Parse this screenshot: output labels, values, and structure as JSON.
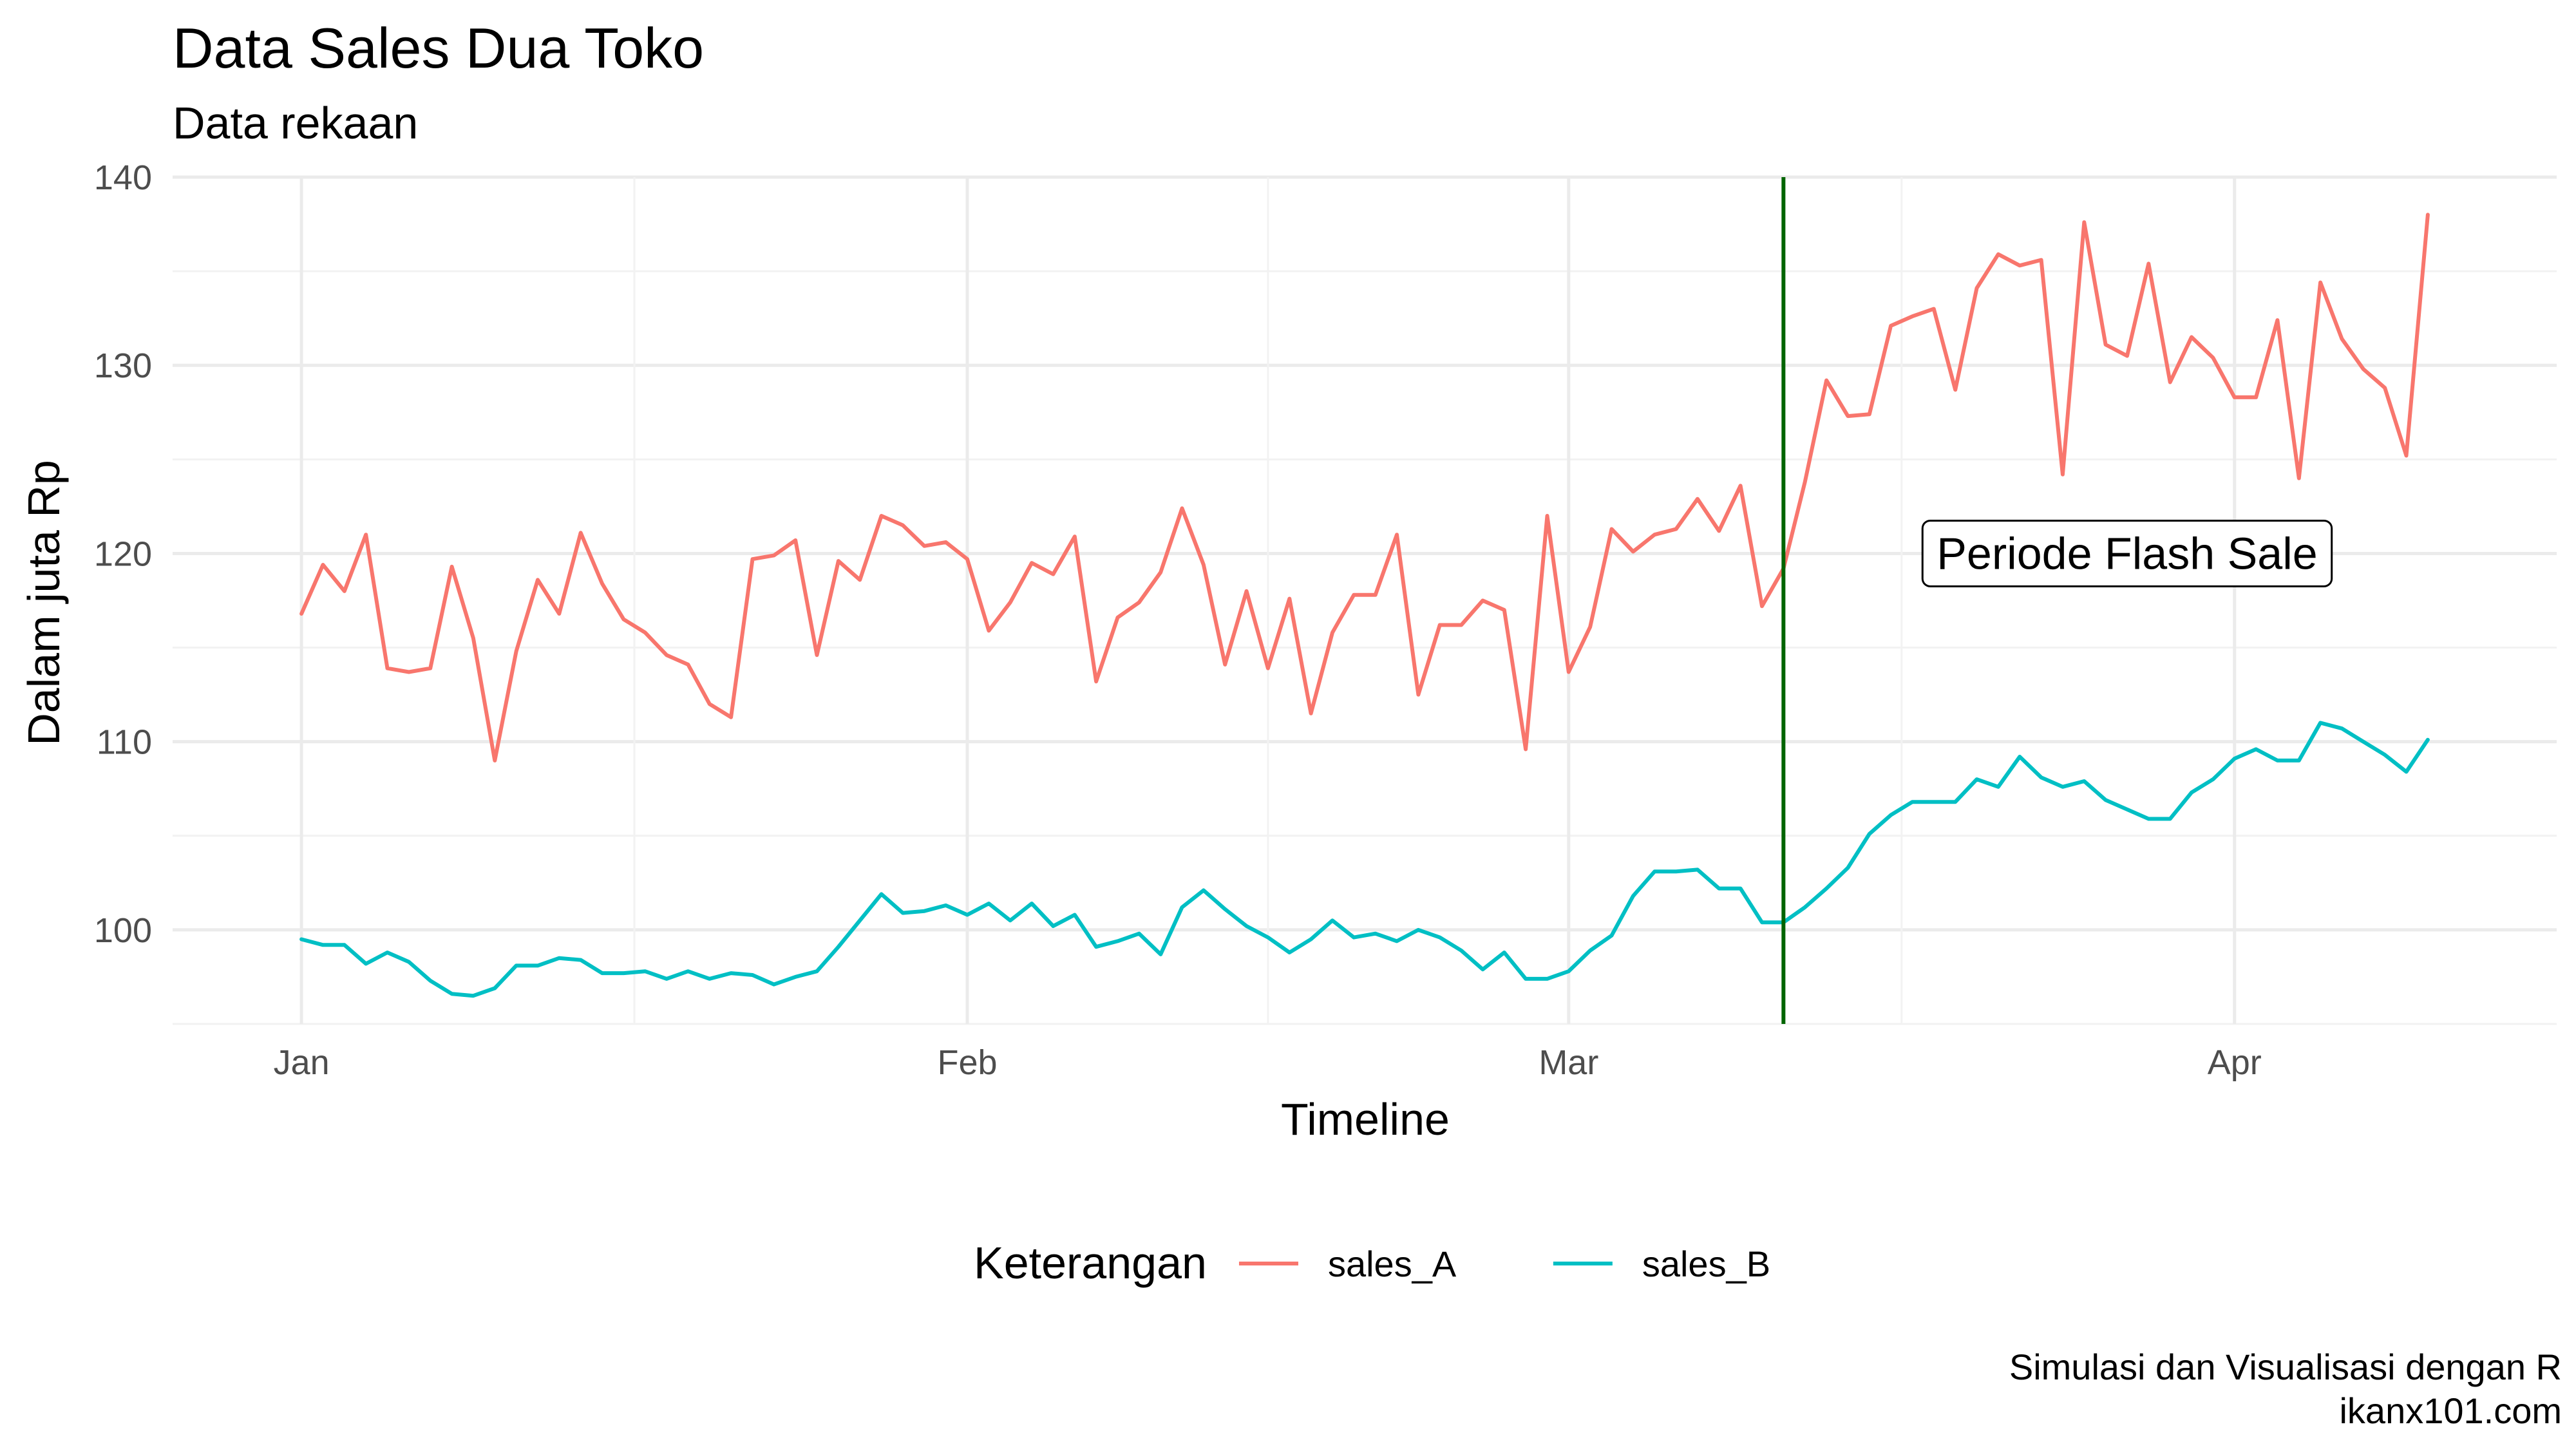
{
  "chart_data": {
    "type": "line",
    "title": "Data Sales Dua Toko",
    "subtitle": "Data rekaan",
    "xlabel": "Timeline",
    "ylabel": "Dalam juta Rp",
    "caption_lines": [
      "Simulasi dan Visualisasi dengan R",
      "ikanx101.com"
    ],
    "x_start": "2021-01-01",
    "x_end": "2021-04-10",
    "xlim": [
      "2020-12-26",
      "2021-04-16"
    ],
    "ylim": [
      95,
      140
    ],
    "y_ticks": [
      100,
      110,
      120,
      130,
      140
    ],
    "x_ticks": [
      {
        "date": "2021-01-01",
        "label": "Jan"
      },
      {
        "date": "2021-02-01",
        "label": "Feb"
      },
      {
        "date": "2021-03-01",
        "label": "Mar"
      },
      {
        "date": "2021-04-01",
        "label": "Apr"
      }
    ],
    "grid": true,
    "legend": {
      "title": "Keterangan",
      "position": "bottom"
    },
    "series": [
      {
        "name": "sales_A",
        "color": "#F8766D",
        "values": [
          116.8,
          119.4,
          118.0,
          121.0,
          113.9,
          113.7,
          113.9,
          119.3,
          115.5,
          109.0,
          114.8,
          118.6,
          116.8,
          121.1,
          118.4,
          116.5,
          115.8,
          114.6,
          114.1,
          112.0,
          111.3,
          119.7,
          119.9,
          120.7,
          114.6,
          119.6,
          118.6,
          122.0,
          121.5,
          120.4,
          120.6,
          119.7,
          115.9,
          117.4,
          119.5,
          118.9,
          120.9,
          113.2,
          116.6,
          117.4,
          119.0,
          122.4,
          119.4,
          114.1,
          118.0,
          113.9,
          117.6,
          111.5,
          115.8,
          117.8,
          117.8,
          121.0,
          112.5,
          116.2,
          116.2,
          117.5,
          117.0,
          109.6,
          122.0,
          113.7,
          116.1,
          121.3,
          120.1,
          121.0,
          121.3,
          122.9,
          121.2,
          123.6,
          117.2,
          119.2,
          123.8,
          129.2,
          127.3,
          127.4,
          132.1,
          132.6,
          133.0,
          128.7,
          134.1,
          135.9,
          135.3,
          135.6,
          124.2,
          137.6,
          131.1,
          130.5,
          135.4,
          129.1,
          131.5,
          130.4,
          128.3,
          128.3,
          132.4,
          124.0,
          134.4,
          131.4,
          129.8,
          128.8,
          125.2,
          138.0
        ]
      },
      {
        "name": "sales_B",
        "color": "#00BFC4",
        "values": [
          99.5,
          99.2,
          99.2,
          98.2,
          98.8,
          98.3,
          97.3,
          96.6,
          96.5,
          96.9,
          98.1,
          98.1,
          98.5,
          98.4,
          97.7,
          97.7,
          97.8,
          97.4,
          97.8,
          97.4,
          97.7,
          97.6,
          97.1,
          97.5,
          97.8,
          99.1,
          100.5,
          101.9,
          100.9,
          101.0,
          101.3,
          100.8,
          101.4,
          100.5,
          101.4,
          100.2,
          100.8,
          99.1,
          99.4,
          99.8,
          98.7,
          101.2,
          102.1,
          101.1,
          100.2,
          99.6,
          98.8,
          99.5,
          100.5,
          99.6,
          99.8,
          99.4,
          100.0,
          99.6,
          98.9,
          97.9,
          98.8,
          97.4,
          97.4,
          97.8,
          98.9,
          99.7,
          101.8,
          103.1,
          103.1,
          103.2,
          102.2,
          102.2,
          100.4,
          100.4,
          101.2,
          102.2,
          103.3,
          105.1,
          106.1,
          106.8,
          106.8,
          106.8,
          108.0,
          107.6,
          109.2,
          108.1,
          107.6,
          107.9,
          106.9,
          106.4,
          105.9,
          105.9,
          107.3,
          108.0,
          109.1,
          109.6,
          109.0,
          109.0,
          111.0,
          110.7,
          110.0,
          109.3,
          108.4,
          110.1
        ]
      }
    ],
    "vline": {
      "date": "2021-03-11",
      "color": "#006400"
    },
    "annotation": {
      "date": "2021-03-27",
      "y": 120,
      "text": "Periode Flash Sale"
    }
  }
}
